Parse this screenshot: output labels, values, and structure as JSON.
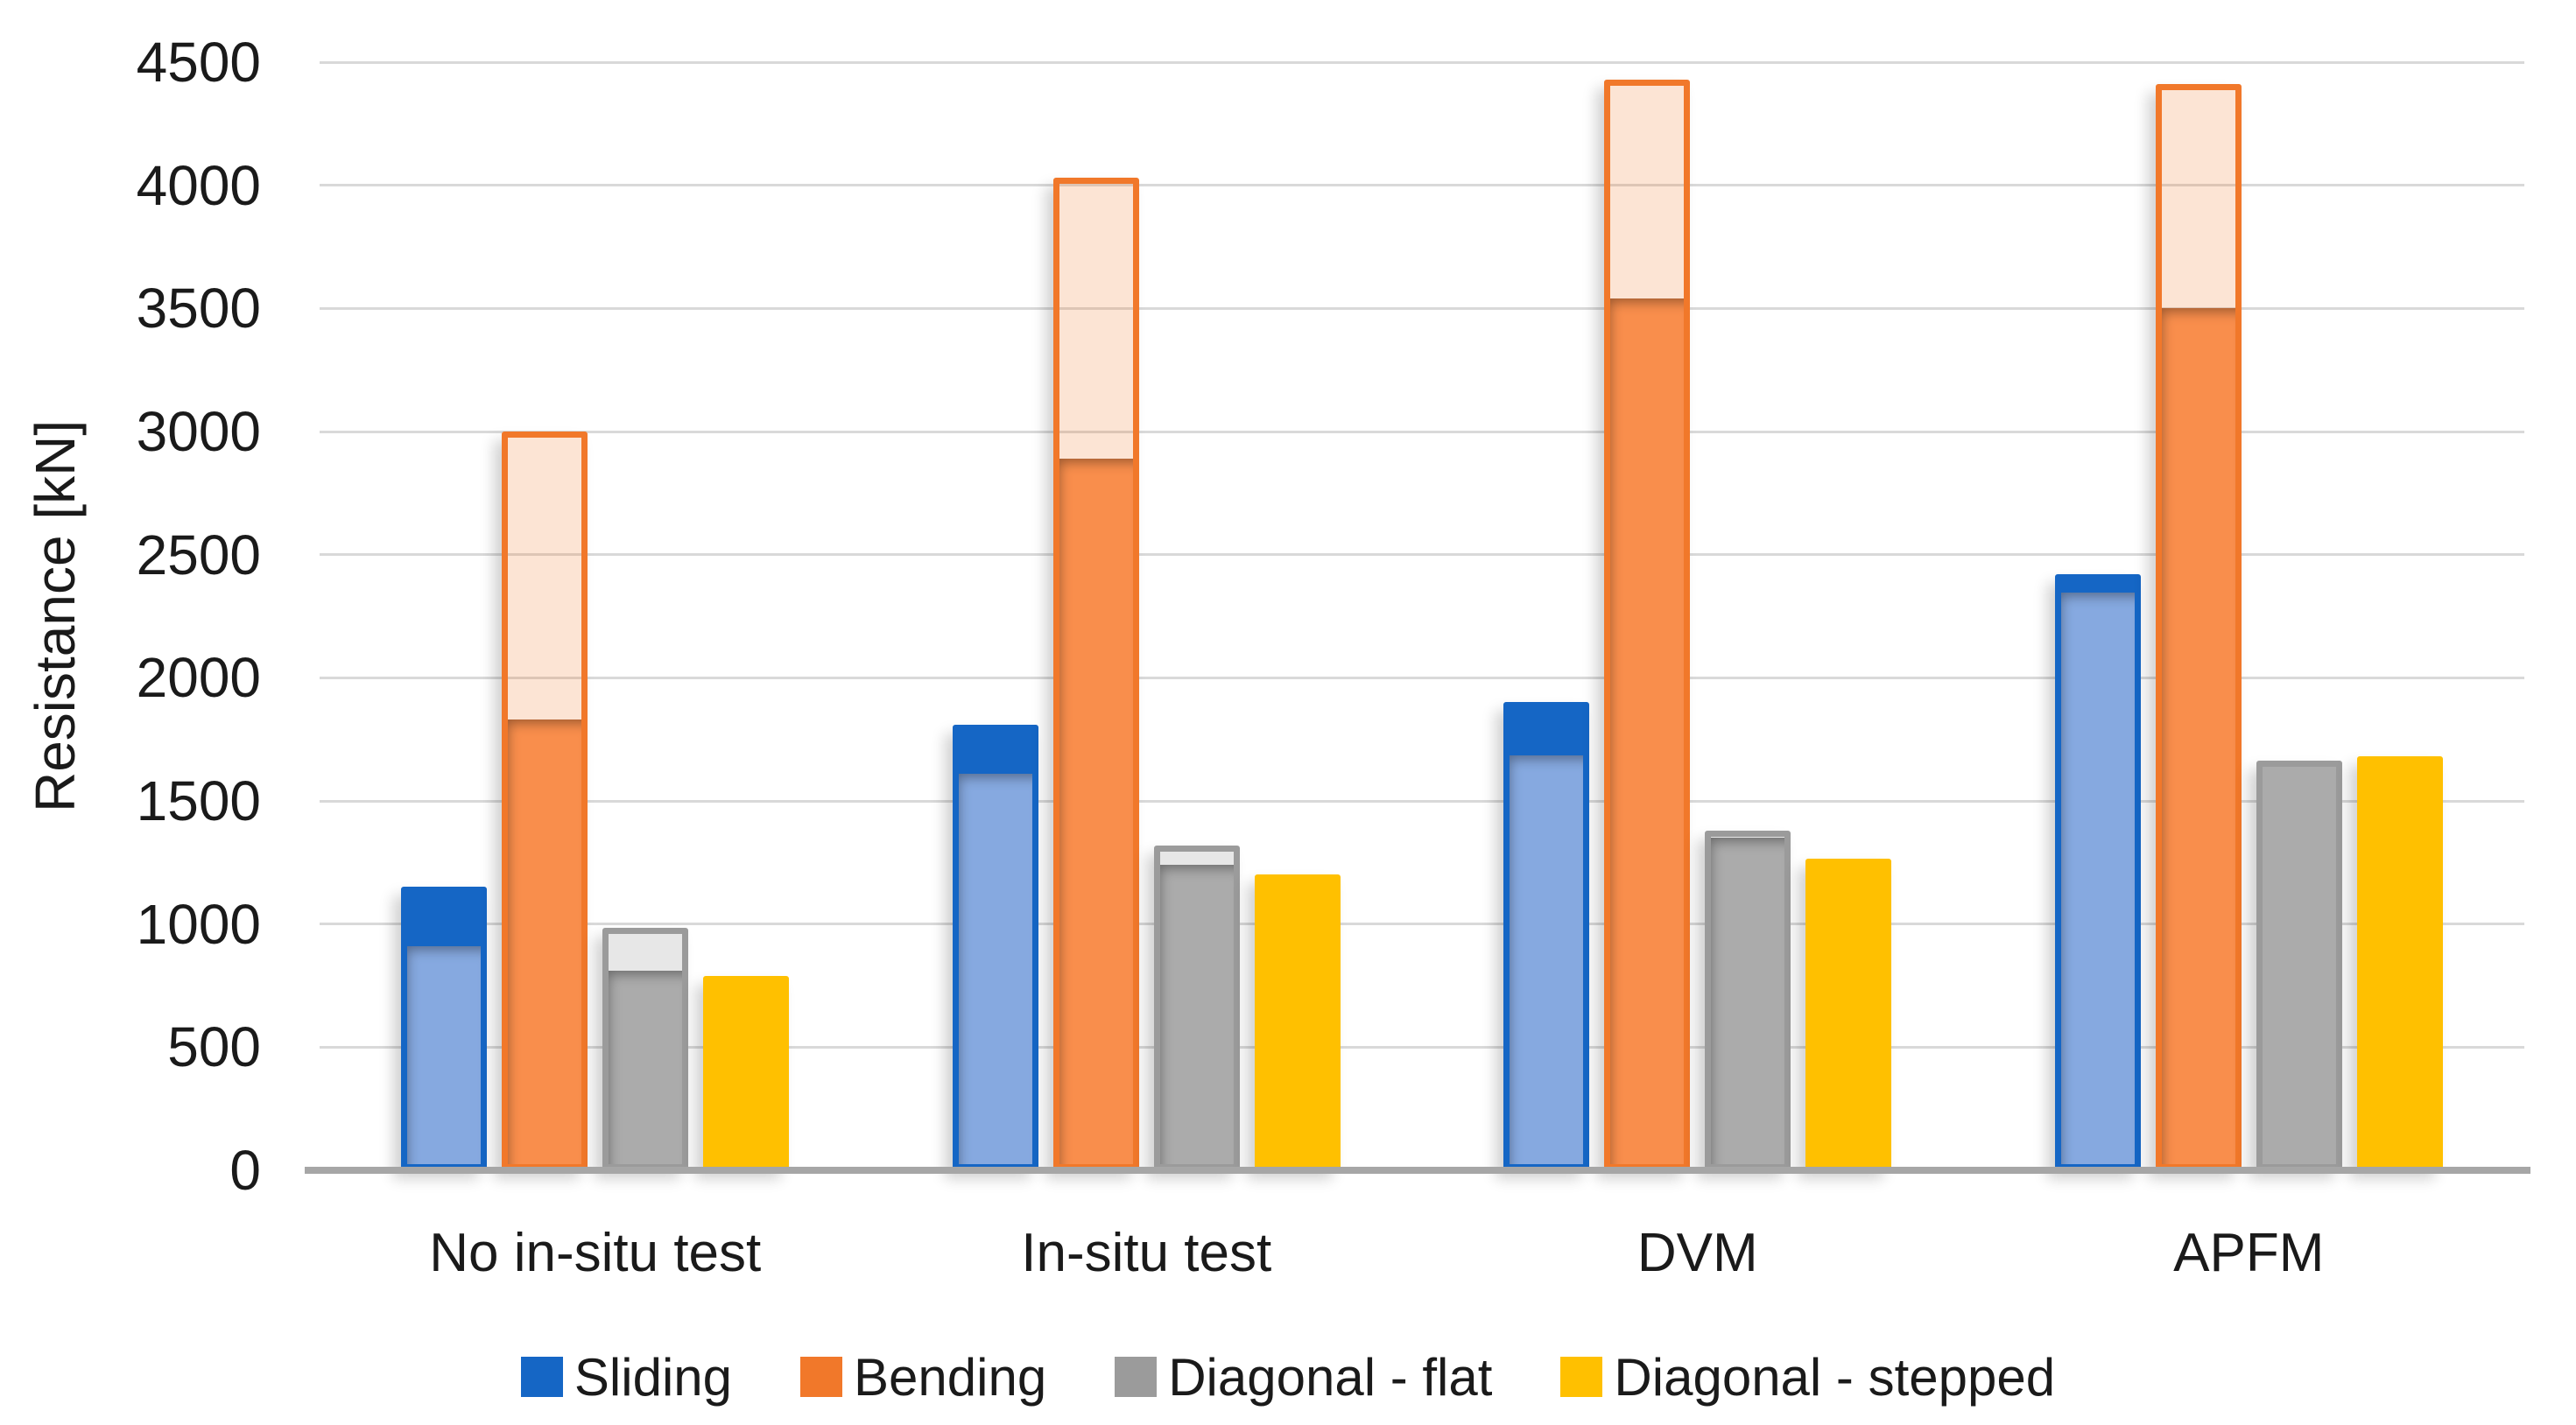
{
  "chart_data": {
    "type": "bar",
    "title": "",
    "xlabel": "",
    "ylabel": "Resistance [kN]",
    "ylim": [
      0,
      4500
    ],
    "ytick_step": 500,
    "yticks": [
      0,
      500,
      1000,
      1500,
      2000,
      2500,
      3000,
      3500,
      4000,
      4500
    ],
    "grid": true,
    "legend_position": "bottom",
    "categories": [
      "No in-situ test",
      "In-situ test",
      "DVM",
      "APFM"
    ],
    "series": [
      {
        "name": "Sliding",
        "color": "#1566C5",
        "fill_color": "#86A9E0",
        "cap_color": "#1566C5",
        "outline_values": [
          1150,
          1810,
          1900,
          2420
        ],
        "fill_values": [
          910,
          1610,
          1685,
          2345
        ]
      },
      {
        "name": "Bending",
        "color": "#F1782A",
        "fill_color": "#F98E4C",
        "cap_color": "rgba(241,120,42,0.20)",
        "outline_values": [
          3000,
          4030,
          4430,
          4410
        ],
        "fill_values": [
          1830,
          2890,
          3540,
          3500
        ]
      },
      {
        "name": "Diagonal - flat",
        "color": "#9B9B9B",
        "fill_color": "#ABABAB",
        "cap_color": "#E7E7E7",
        "outline_values": [
          985,
          1320,
          1380,
          1665
        ],
        "fill_values": [
          810,
          1240,
          1350,
          1650
        ]
      },
      {
        "name": "Diagonal - stepped",
        "color": "#FFC000",
        "fill_color": "#FFC000",
        "cap_color": "#FFC000",
        "outline_values": [
          790,
          1200,
          1265,
          1680
        ],
        "fill_values": [
          790,
          1200,
          1265,
          1680
        ]
      }
    ]
  },
  "colors": {
    "background": "#FFFFFF",
    "gridline": "#D9D9D9",
    "axis_line": "#A6A6A6",
    "text": "#1A1A1A"
  }
}
